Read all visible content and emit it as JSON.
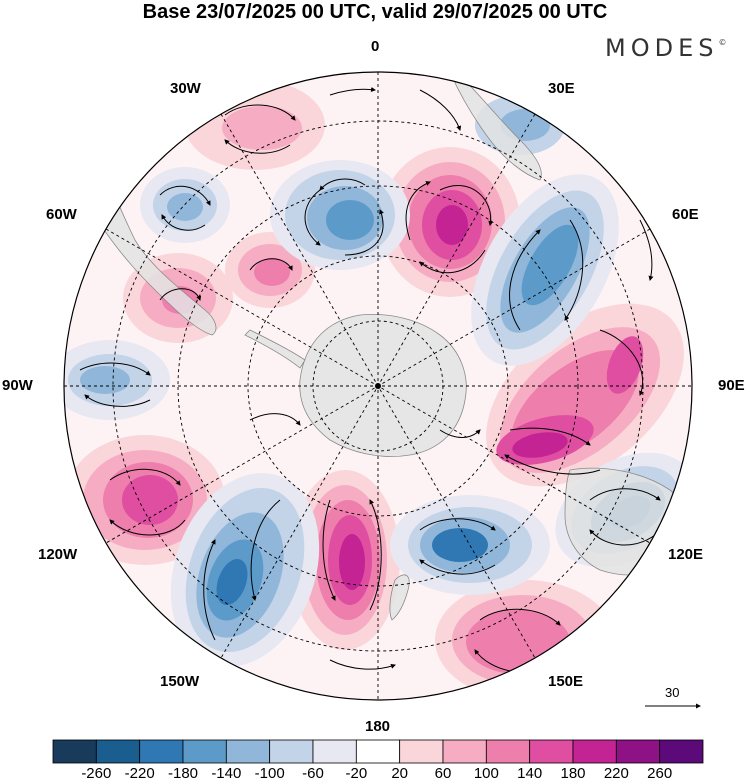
{
  "title": "Base 23/07/2025 00 UTC, valid 29/07/2025 00 UTC",
  "brand": "MODES",
  "brand_mark": "©",
  "longitude_labels": {
    "lon_0": "0",
    "lon_30e": "30E",
    "lon_60e": "60E",
    "lon_90e": "90E",
    "lon_120e": "120E",
    "lon_150e": "150E",
    "lon_180": "180",
    "lon_150w": "150W",
    "lon_120w": "120W",
    "lon_90w": "90W",
    "lon_60w": "60W",
    "lon_30w": "30W"
  },
  "vector_reference": {
    "label": "30",
    "value": 30
  },
  "colorbar": {
    "labels": [
      "-260",
      "-220",
      "-180",
      "-140",
      "-100",
      "-60",
      "-20",
      "20",
      "60",
      "100",
      "140",
      "180",
      "220",
      "260"
    ],
    "colors": [
      "#183b5c",
      "#1a5d8f",
      "#2f78b3",
      "#5c9bc9",
      "#90b7d9",
      "#c3d3e8",
      "#e8e8f2",
      "#ffffff",
      "#fad6da",
      "#f6adc3",
      "#ee7eac",
      "#df4ea0",
      "#c42394",
      "#8e1285",
      "#5c0a7a"
    ]
  },
  "colors": {
    "land": "#e3e3e3",
    "ocean": "#ffffff",
    "frame": "#000000"
  }
}
